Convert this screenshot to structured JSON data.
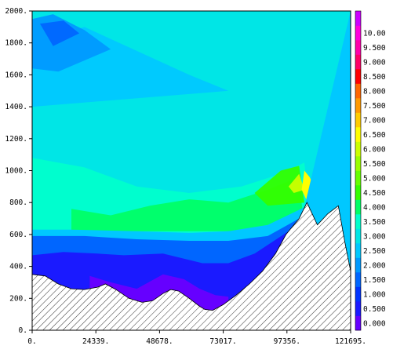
{
  "chart_data": {
    "type": "heatmap",
    "xlim": [
      0,
      121695
    ],
    "ylim": [
      0,
      2000
    ],
    "x_ticks": [
      {
        "value": 0,
        "label": "0."
      },
      {
        "value": 24339,
        "label": "24339."
      },
      {
        "value": 48678,
        "label": "48678."
      },
      {
        "value": 73017,
        "label": "73017."
      },
      {
        "value": 97356,
        "label": "97356."
      },
      {
        "value": 121695,
        "label": "121695."
      }
    ],
    "y_ticks": [
      {
        "value": 0,
        "label": "0."
      },
      {
        "value": 200,
        "label": "200."
      },
      {
        "value": 400,
        "label": "400."
      },
      {
        "value": 600,
        "label": "600."
      },
      {
        "value": 800,
        "label": "800."
      },
      {
        "value": 1000,
        "label": "1000."
      },
      {
        "value": 1200,
        "label": "1200."
      },
      {
        "value": 1400,
        "label": "1400."
      },
      {
        "value": 1600,
        "label": "1600."
      },
      {
        "value": 1800,
        "label": "1800."
      },
      {
        "value": 2000,
        "label": "2000."
      }
    ],
    "colorbar": {
      "levels": [
        {
          "label": "0.000",
          "color": "#6600ff"
        },
        {
          "label": "0.500",
          "color": "#1a1aff"
        },
        {
          "label": "1.000",
          "color": "#0033ff"
        },
        {
          "label": "1.500",
          "color": "#0066ff"
        },
        {
          "label": "2.000",
          "color": "#0099ff"
        },
        {
          "label": "2.500",
          "color": "#00c8ff"
        },
        {
          "label": "3.000",
          "color": "#00e6e6"
        },
        {
          "label": "3.500",
          "color": "#00ffcc"
        },
        {
          "label": "4.000",
          "color": "#00ff66"
        },
        {
          "label": "4.500",
          "color": "#33ff00"
        },
        {
          "label": "5.000",
          "color": "#66ff00"
        },
        {
          "label": "5.500",
          "color": "#99ff00"
        },
        {
          "label": "6.000",
          "color": "#ccff00"
        },
        {
          "label": "6.500",
          "color": "#ffff00"
        },
        {
          "label": "7.000",
          "color": "#ffcc00"
        },
        {
          "label": "7.500",
          "color": "#ff9900"
        },
        {
          "label": "8.000",
          "color": "#ff6600"
        },
        {
          "label": "8.500",
          "color": "#ff0000"
        },
        {
          "label": "9.000",
          "color": "#ff0066"
        },
        {
          "label": "9.500",
          "color": "#ff00aa"
        },
        {
          "label": "10.00",
          "color": "#ff00dd"
        },
        {
          "label": "",
          "color": "#cc00ff"
        }
      ]
    },
    "terrain_profile": [
      [
        0,
        350
      ],
      [
        5000,
        340
      ],
      [
        10000,
        290
      ],
      [
        15000,
        260
      ],
      [
        20000,
        255
      ],
      [
        25000,
        270
      ],
      [
        28000,
        290
      ],
      [
        32000,
        255
      ],
      [
        37000,
        200
      ],
      [
        42000,
        175
      ],
      [
        46000,
        185
      ],
      [
        50000,
        230
      ],
      [
        53000,
        255
      ],
      [
        56000,
        245
      ],
      [
        60000,
        200
      ],
      [
        64000,
        150
      ],
      [
        66000,
        130
      ],
      [
        69000,
        125
      ],
      [
        73000,
        160
      ],
      [
        78000,
        220
      ],
      [
        83000,
        290
      ],
      [
        88000,
        370
      ],
      [
        93000,
        480
      ],
      [
        97000,
        600
      ],
      [
        102000,
        700
      ],
      [
        105000,
        800
      ],
      [
        109000,
        660
      ],
      [
        113000,
        730
      ],
      [
        117000,
        780
      ],
      [
        119500,
        550
      ],
      [
        121695,
        370
      ]
    ],
    "field_bands": [
      {
        "level": 3,
        "top": [
          [
            0,
            630
          ],
          [
            15000,
            630
          ],
          [
            40000,
            620
          ],
          [
            60000,
            610
          ],
          [
            75000,
            620
          ],
          [
            90000,
            660
          ],
          [
            104000,
            770
          ],
          [
            121695,
            2000
          ]
        ]
      },
      {
        "level": 2,
        "top": [
          [
            0,
            590
          ],
          [
            20000,
            590
          ],
          [
            40000,
            570
          ],
          [
            60000,
            560
          ],
          [
            75000,
            560
          ],
          [
            90000,
            590
          ],
          [
            102000,
            700
          ],
          [
            110000,
            650
          ],
          [
            121695,
            380
          ]
        ]
      },
      {
        "level": 1,
        "top": [
          [
            0,
            470
          ],
          [
            12000,
            490
          ],
          [
            25000,
            480
          ],
          [
            35000,
            470
          ],
          [
            50000,
            480
          ],
          [
            65000,
            420
          ],
          [
            75000,
            420
          ],
          [
            85000,
            480
          ],
          [
            98000,
            620
          ],
          [
            121695,
            370
          ]
        ]
      },
      {
        "level": 0,
        "top": [
          [
            22000,
            340
          ],
          [
            30000,
            300
          ],
          [
            40000,
            260
          ],
          [
            50000,
            350
          ],
          [
            58000,
            320
          ],
          [
            64000,
            260
          ],
          [
            70000,
            220
          ],
          [
            75000,
            210
          ]
        ]
      }
    ]
  }
}
